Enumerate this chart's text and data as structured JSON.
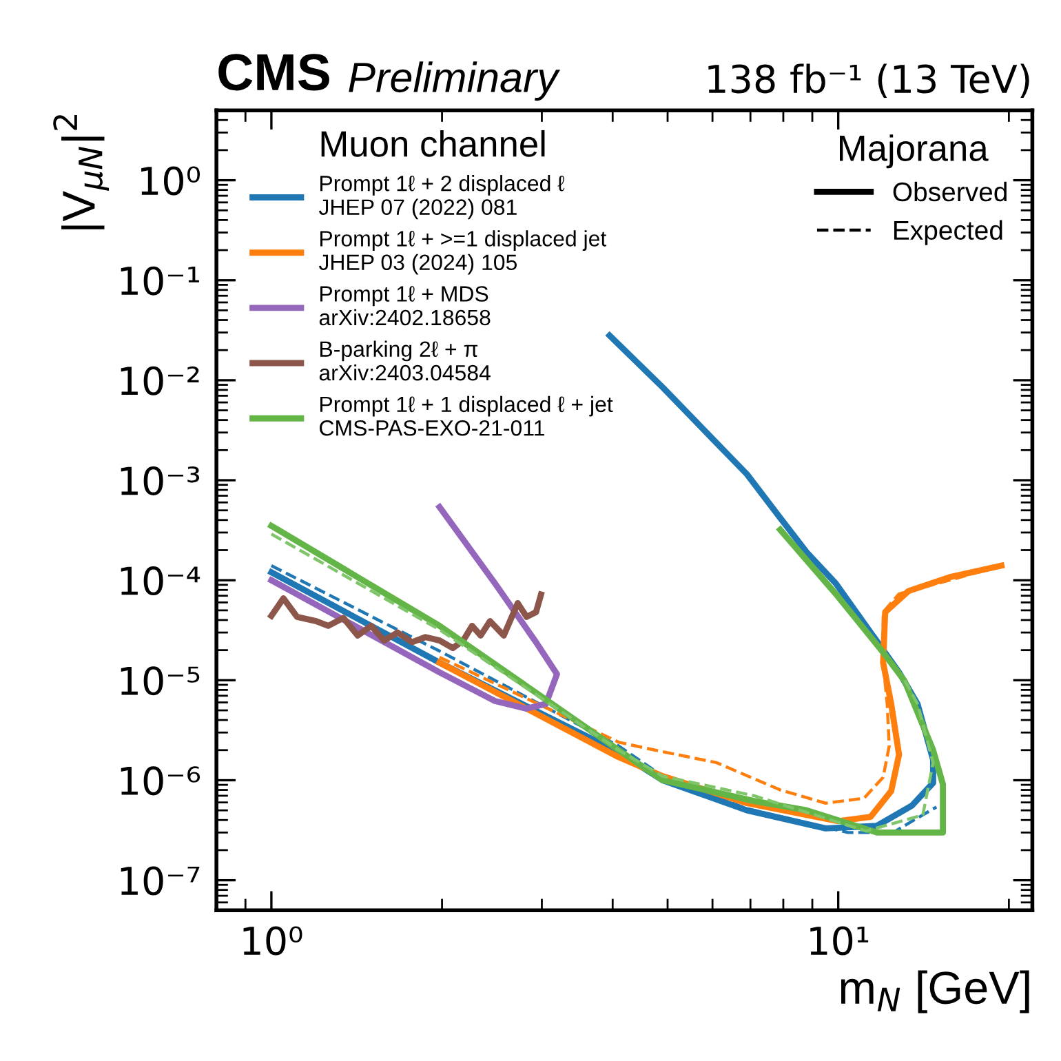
{
  "chart_data": {
    "type": "line",
    "title": "CMS",
    "subtitle": "Preliminary",
    "xlabel": "m$_{N}$ [GeV]",
    "ylabel": "|V$_{μN}$|$^{2}$",
    "legend_title": "Muon channel",
    "annotations": [
      "138 fb⁻¹ (13 TeV)",
      "Majorana",
      "Observed",
      "Expected"
    ],
    "log": "xy",
    "grid": false,
    "legend": "top left",
    "marker": "none",
    "xlim": [
      0.8,
      22
    ],
    "ylim": [
      5e-08,
      5
    ],
    "xticks": [
      {
        "value": 1,
        "label": "10⁰"
      },
      {
        "value": 10,
        "label": "10¹"
      }
    ],
    "yticks": [
      {
        "value": 1e-07,
        "label": "10⁻⁷"
      },
      {
        "value": 1e-06,
        "label": "10⁻⁶"
      },
      {
        "value": 1e-05,
        "label": "10⁻⁵"
      },
      {
        "value": 0.0001,
        "label": "10⁻⁴"
      },
      {
        "value": 0.001,
        "label": "10⁻³"
      },
      {
        "value": 0.01,
        "label": "10⁻²"
      },
      {
        "value": 0.1,
        "label": "10⁻¹"
      },
      {
        "value": 1,
        "label": "10⁰"
      }
    ],
    "series": [
      {
        "name": "Prompt 1ℓ + 2 displaced ℓ\nJHEP 07 (2022) 081",
        "color": "#1f77b4",
        "line_style": "solid",
        "x": [
          1,
          1.98,
          4.1,
          4.9,
          6.9,
          9.5,
          11.7,
          13.5,
          14.7,
          14.7,
          13.8,
          12.8,
          9.9,
          8.8,
          7.9,
          6.9,
          6.0,
          4.9,
          3.95
        ],
        "values": [
          0.00012,
          1.5e-05,
          1.9e-06,
          1e-06,
          5e-07,
          3.3e-07,
          3.5e-07,
          5.6e-07,
          9.4e-07,
          1.6e-06,
          5.8e-06,
          1.2e-05,
          9.3e-05,
          0.00019,
          0.00042,
          0.00115,
          0.0026,
          0.0085,
          0.028
        ]
      },
      {
        "color": "#1f77b4",
        "line_style": "dashed",
        "x": [
          1,
          2.0,
          4.1,
          4.9,
          6.9,
          10.4,
          12.5,
          13.5,
          14.9
        ],
        "values": [
          0.00014,
          1.9e-05,
          2.2e-06,
          1.1e-06,
          5.2e-07,
          3e-07,
          3e-07,
          3.9e-07,
          5.4e-07
        ]
      },
      {
        "name": "Prompt 1ℓ + >=1 displaced jet\nJHEP 03 (2024) 105",
        "color": "#ff7f0e",
        "line_style": "solid",
        "x": [
          1.98,
          4.1,
          4.9,
          6.9,
          10,
          11.4,
          12.4,
          12.8,
          12.4,
          12.0,
          12.1,
          13.3,
          15.7,
          19.4
        ],
        "values": [
          1.5e-05,
          1.7e-06,
          1.1e-06,
          5.9e-07,
          3.9e-07,
          4.3e-07,
          7.8e-07,
          1.8e-06,
          5.8e-06,
          1.5e-05,
          4.8e-05,
          7.8e-05,
          0.000107,
          0.00014
        ]
      },
      {
        "color": "#ff7f0e",
        "line_style": "dashed",
        "x": [
          1.98,
          4.1,
          4.75,
          6.1,
          7.9,
          9.5,
          11.1,
          12.0,
          12.3,
          12.2,
          12.0,
          12.0,
          12.8,
          15.7,
          19.4
        ],
        "values": [
          1.7e-05,
          2.4e-06,
          2e-06,
          1.5e-06,
          8e-07,
          5.9e-07,
          6.6e-07,
          1.07e-06,
          2.2e-06,
          5.8e-06,
          1.5e-05,
          4.8e-05,
          7.3e-05,
          0.0001,
          0.00014
        ]
      },
      {
        "name": "Prompt 1ℓ + MDS\narXiv:2402.18658",
        "color": "#9467bd",
        "line_style": "solid",
        "x": [
          1,
          1.98,
          2.48,
          2.82,
          3.05,
          3.19,
          2.93,
          2.48,
          1.98
        ],
        "values": [
          0.0001,
          1.2e-05,
          6.2e-06,
          5.2e-06,
          5.8e-06,
          1.15e-05,
          2.4e-05,
          9.3e-05,
          0.00054
        ]
      },
      {
        "name": "B-parking 2ℓ + π\narXiv:2403.04584",
        "color": "#8c564b",
        "line_style": "solid",
        "x": [
          1.0,
          1.05,
          1.11,
          1.2,
          1.26,
          1.34,
          1.42,
          1.5,
          1.58,
          1.67,
          1.77,
          1.87,
          1.98,
          2.09,
          2.18,
          2.26,
          2.34,
          2.43,
          2.57,
          2.72,
          2.82,
          2.93,
          2.99
        ],
        "values": [
          4.4e-05,
          6.6e-05,
          4.3e-05,
          3.9e-05,
          3.5e-05,
          4.2e-05,
          2.8e-05,
          3.5e-05,
          2.5e-05,
          3e-05,
          2.4e-05,
          2.7e-05,
          2.5e-05,
          2.1e-05,
          2.5e-05,
          3.5e-05,
          2.8e-05,
          3.9e-05,
          2.8e-05,
          5.9e-05,
          4.3e-05,
          4.8e-05,
          7.2e-05
        ]
      },
      {
        "name": "Prompt 1ℓ + 1 displaced ℓ + jet\nCMS-PAS-EXO-21-011",
        "color": "#63b547",
        "line_style": "solid",
        "x": [
          1,
          1.98,
          4.1,
          4.9,
          7.1,
          8.8,
          11.7,
          15.3,
          15.3,
          14.7,
          13.1,
          12.0,
          9.9,
          7.9
        ],
        "values": [
          0.00035,
          3.5e-05,
          2e-06,
          1e-06,
          6.2e-07,
          5e-07,
          3e-07,
          3e-07,
          9.1e-07,
          2e-06,
          9.8e-06,
          1.9e-05,
          7.3e-05,
          0.00032
        ]
      },
      {
        "color": "#7fc66a",
        "line_style": "dashed",
        "x": [
          1,
          1.98,
          4.1,
          4.9,
          7.1,
          11.2,
          14.1,
          14.7,
          13.8,
          13.1
        ],
        "values": [
          0.00029,
          3.2e-05,
          2e-06,
          1.1e-06,
          7e-07,
          3.1e-07,
          4.5e-07,
          1.5e-06,
          5.8e-06,
          1e-05
        ]
      }
    ]
  }
}
